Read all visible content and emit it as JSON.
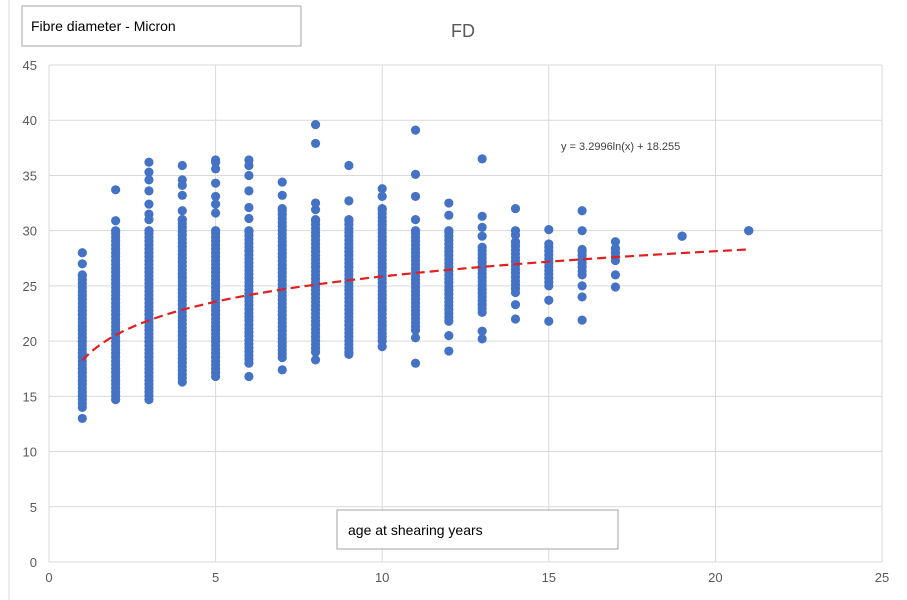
{
  "chart_data": {
    "type": "scatter",
    "title": "FD",
    "ylabel": "Fibre diameter - Micron",
    "xlabel": "age at shearing years",
    "xlim": [
      0,
      25
    ],
    "ylim": [
      0,
      45
    ],
    "xticks": [
      0,
      5,
      10,
      15,
      20,
      25
    ],
    "yticks": [
      0,
      5,
      10,
      15,
      20,
      25,
      30,
      35,
      40,
      45
    ],
    "grid": true,
    "marker_color": "#4472C4",
    "trendline": {
      "type": "logarithmic",
      "a": 3.2996,
      "b": 18.255,
      "x_range": [
        1,
        21
      ],
      "label": "y = 3.2996ln(x) + 18.255",
      "color": "#E02020"
    },
    "columns": [
      {
        "x": 1,
        "min": 14,
        "max": 26,
        "extra": [
          13,
          27,
          28
        ]
      },
      {
        "x": 2,
        "min": 14.7,
        "max": 30,
        "extra": [
          30.9,
          33.7
        ]
      },
      {
        "x": 3,
        "min": 14.7,
        "max": 30,
        "extra": [
          31,
          31.5,
          32.4,
          33.6,
          34.6,
          35.3,
          36.2
        ]
      },
      {
        "x": 4,
        "min": 16.3,
        "max": 31,
        "extra": [
          31.8,
          33.2,
          34.1,
          34.6,
          35.9
        ]
      },
      {
        "x": 5,
        "min": 16.8,
        "max": 30,
        "extra": [
          31.6,
          32.4,
          33.1,
          34.3,
          35.6,
          36.2,
          36.4
        ]
      },
      {
        "x": 6,
        "min": 18,
        "max": 30,
        "extra": [
          16.8,
          31.1,
          32.1,
          33.6,
          35,
          35.9,
          36.4
        ]
      },
      {
        "x": 7,
        "min": 18.5,
        "max": 32,
        "extra": [
          17.4,
          33.2,
          34.4
        ]
      },
      {
        "x": 8,
        "min": 19,
        "max": 31,
        "extra": [
          18.3,
          31.9,
          32.5,
          37.9,
          39.6
        ]
      },
      {
        "x": 9,
        "min": 19,
        "max": 31,
        "extra": [
          18.8,
          32.7,
          35.9
        ]
      },
      {
        "x": 10,
        "min": 20,
        "max": 32,
        "extra": [
          19.5,
          33.1,
          33.8
        ]
      },
      {
        "x": 11,
        "min": 21,
        "max": 30,
        "extra": [
          18,
          20.3,
          31,
          33.1,
          35.1,
          39.1
        ]
      },
      {
        "x": 12,
        "min": 21.8,
        "max": 30,
        "extra": [
          19.1,
          20.5,
          31.4,
          32.5
        ]
      },
      {
        "x": 13,
        "min": 22.6,
        "max": 28.5,
        "extra": [
          20.2,
          20.9,
          29.5,
          30.3,
          31.3,
          36.5
        ]
      },
      {
        "x": 14,
        "min": 24.4,
        "max": 29,
        "extra": [
          22,
          23.3,
          29.6,
          30,
          32
        ]
      },
      {
        "x": 15,
        "min": 25,
        "max": 28.8,
        "extra": [
          21.8,
          23.7,
          30.1
        ]
      },
      {
        "x": 16,
        "min": 26,
        "max": 28.3,
        "extra": [
          21.9,
          24,
          25,
          30,
          31.8
        ]
      },
      {
        "x": 17,
        "min": 27.3,
        "max": 28.4,
        "extra": [
          24.9,
          26,
          29
        ]
      },
      {
        "x": 19,
        "min": 29.5,
        "max": 29.5,
        "extra": []
      },
      {
        "x": 21,
        "min": 30,
        "max": 30,
        "extra": []
      }
    ]
  }
}
